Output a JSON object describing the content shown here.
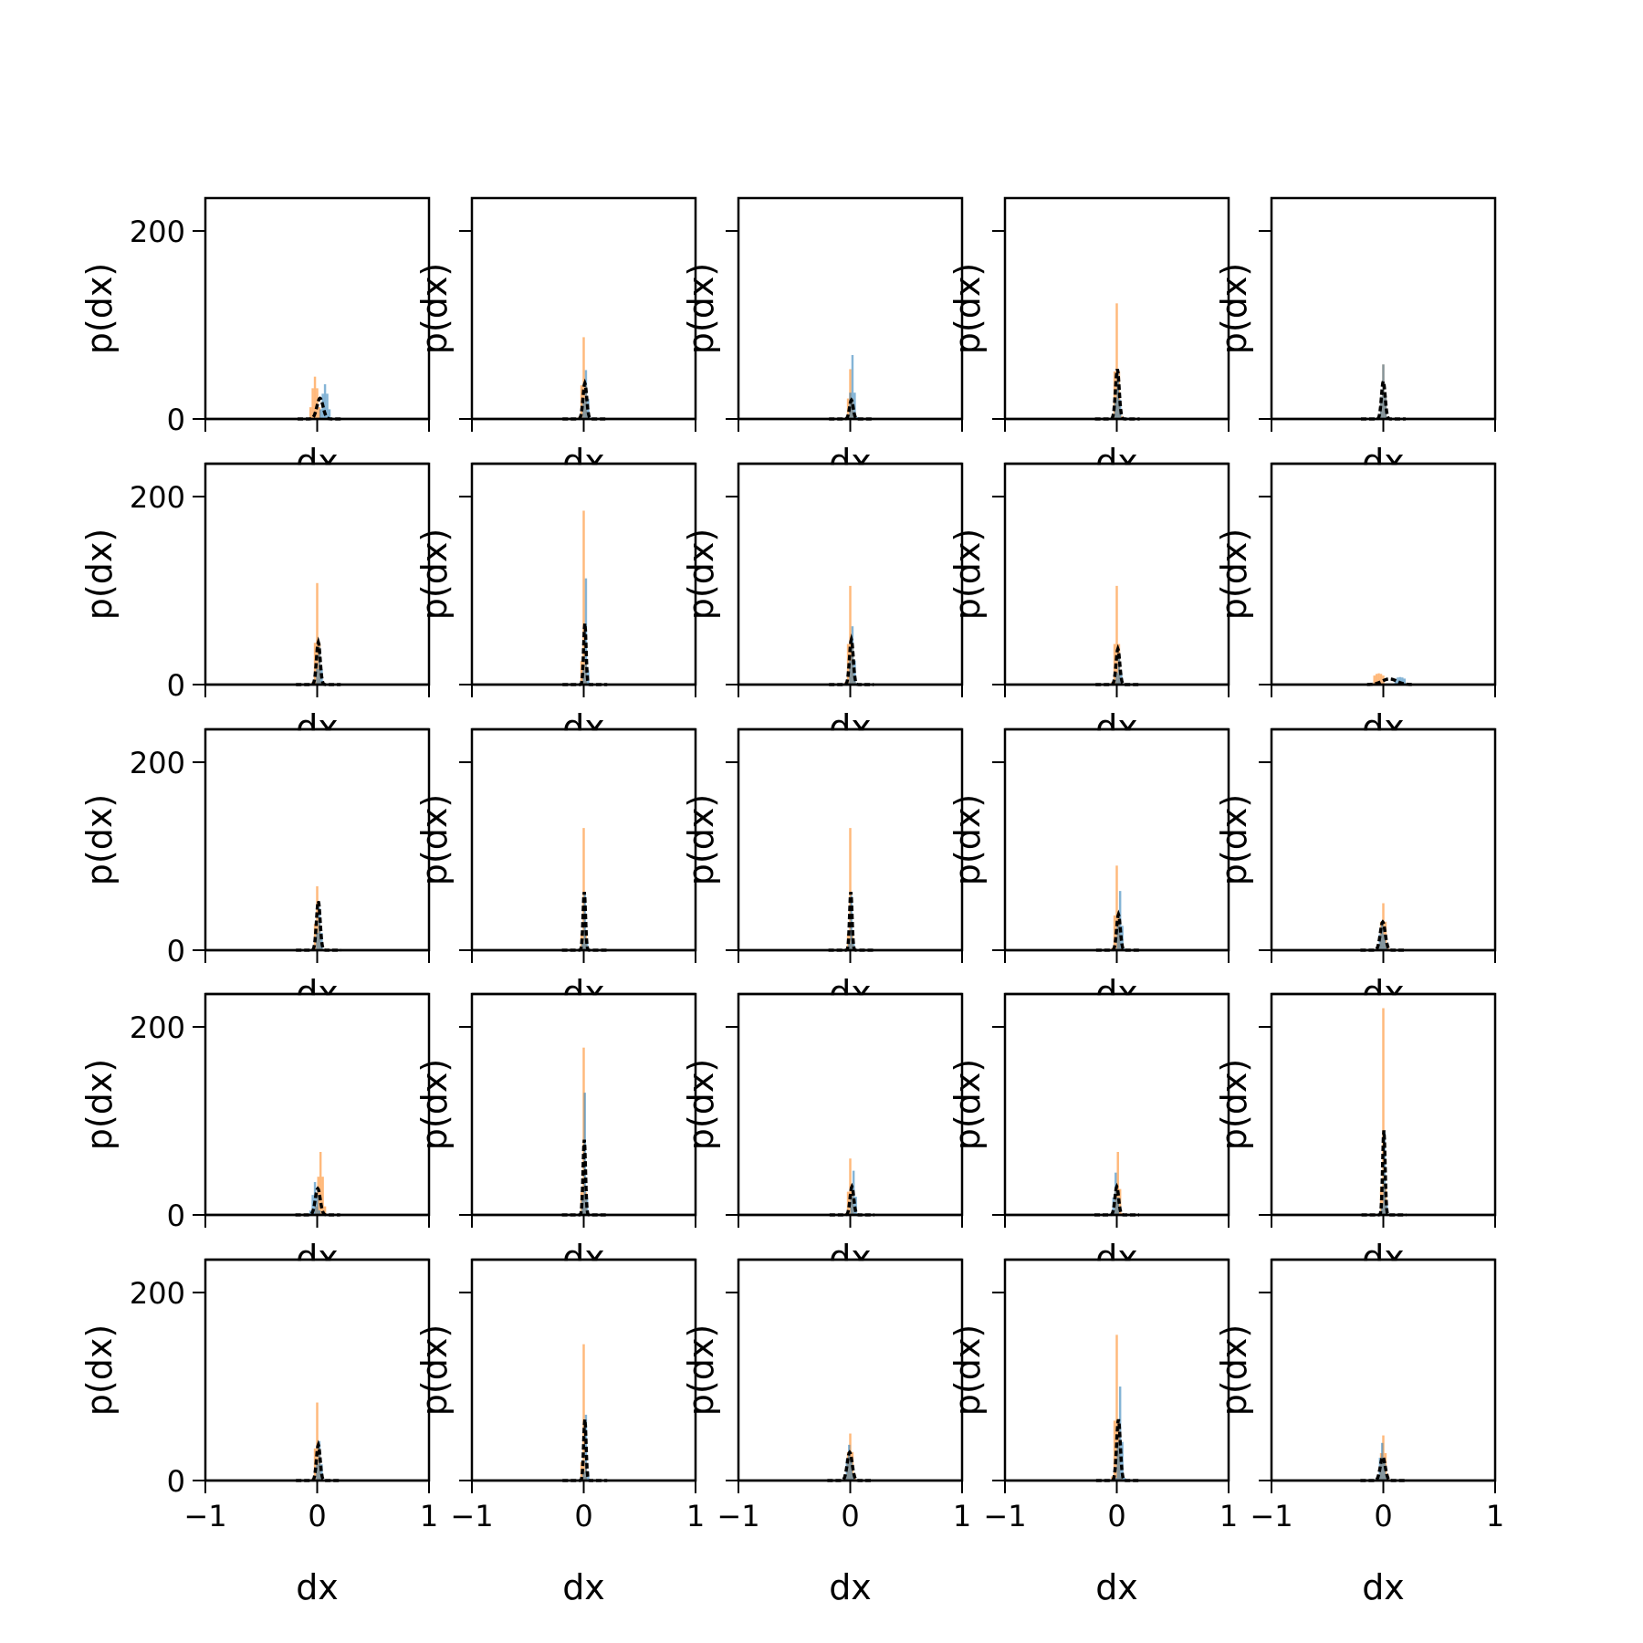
{
  "colors": {
    "series_blue": "#1f77b4",
    "series_orange": "#ff7f0e",
    "overlay": "#000000",
    "axes": "#000000"
  },
  "chart_data": {
    "type": "bar",
    "layout": "5x5 grid of histogram panels, shared x and y axes",
    "xlabel": "dx",
    "ylabel": "p(dx)",
    "xlim": [
      -1,
      1
    ],
    "ylim": [
      0,
      235
    ],
    "xticks": [
      -1,
      0,
      1
    ],
    "xtick_labels": [
      "−1",
      "0",
      "1"
    ],
    "yticks": [
      0,
      200
    ],
    "ytick_labels": [
      "0",
      "200"
    ],
    "grid": false,
    "legend": "none",
    "series": [
      {
        "color": "blue",
        "style": "histogram, translucent"
      },
      {
        "color": "orange",
        "style": "histogram, translucent"
      },
      {
        "color": "black",
        "style": "dashed density curve"
      }
    ],
    "panels": [
      {
        "row": 1,
        "col": 1,
        "orange_peak": 45,
        "orange_x": -0.02,
        "blue_peak": 37,
        "blue_x": 0.07,
        "black_peak": 22,
        "spread": 0.05
      },
      {
        "row": 1,
        "col": 2,
        "orange_peak": 87,
        "orange_x": 0.0,
        "blue_peak": 52,
        "blue_x": 0.02,
        "black_peak": 38,
        "spread": 0.03
      },
      {
        "row": 1,
        "col": 3,
        "orange_peak": 53,
        "orange_x": 0.0,
        "blue_peak": 68,
        "blue_x": 0.02,
        "black_peak": 20,
        "spread": 0.03
      },
      {
        "row": 1,
        "col": 4,
        "orange_peak": 123,
        "orange_x": 0.0,
        "blue_peak": 50,
        "blue_x": 0.01,
        "black_peak": 53,
        "spread": 0.03
      },
      {
        "row": 1,
        "col": 5,
        "orange_peak": 58,
        "orange_x": 0.0,
        "blue_peak": 58,
        "blue_x": 0.0,
        "black_peak": 40,
        "spread": 0.03
      },
      {
        "row": 2,
        "col": 1,
        "orange_peak": 108,
        "orange_x": 0.0,
        "blue_peak": 40,
        "blue_x": 0.02,
        "black_peak": 45,
        "spread": 0.03
      },
      {
        "row": 2,
        "col": 2,
        "orange_peak": 185,
        "orange_x": 0.0,
        "blue_peak": 113,
        "blue_x": 0.02,
        "black_peak": 65,
        "spread": 0.02
      },
      {
        "row": 2,
        "col": 3,
        "orange_peak": 105,
        "orange_x": 0.0,
        "blue_peak": 62,
        "blue_x": 0.02,
        "black_peak": 48,
        "spread": 0.03
      },
      {
        "row": 2,
        "col": 4,
        "orange_peak": 105,
        "orange_x": 0.0,
        "blue_peak": 30,
        "blue_x": 0.02,
        "black_peak": 38,
        "spread": 0.03
      },
      {
        "row": 2,
        "col": 5,
        "orange_peak": 12,
        "orange_x": -0.04,
        "blue_peak": 8,
        "blue_x": 0.15,
        "black_peak": 6,
        "spread": 0.12
      },
      {
        "row": 3,
        "col": 1,
        "orange_peak": 68,
        "orange_x": 0.0,
        "blue_peak": 45,
        "blue_x": 0.02,
        "black_peak": 52,
        "spread": 0.03
      },
      {
        "row": 3,
        "col": 2,
        "orange_peak": 130,
        "orange_x": 0.0,
        "blue_peak": 60,
        "blue_x": 0.01,
        "black_peak": 62,
        "spread": 0.02
      },
      {
        "row": 3,
        "col": 3,
        "orange_peak": 130,
        "orange_x": 0.0,
        "blue_peak": 58,
        "blue_x": 0.01,
        "black_peak": 62,
        "spread": 0.02
      },
      {
        "row": 3,
        "col": 4,
        "orange_peak": 90,
        "orange_x": 0.0,
        "blue_peak": 63,
        "blue_x": 0.03,
        "black_peak": 38,
        "spread": 0.03
      },
      {
        "row": 3,
        "col": 5,
        "orange_peak": 50,
        "orange_x": 0.0,
        "blue_peak": 28,
        "blue_x": -0.01,
        "black_peak": 30,
        "spread": 0.04
      },
      {
        "row": 4,
        "col": 1,
        "orange_peak": 67,
        "orange_x": 0.03,
        "blue_peak": 35,
        "blue_x": -0.02,
        "black_peak": 28,
        "spread": 0.04
      },
      {
        "row": 4,
        "col": 2,
        "orange_peak": 178,
        "orange_x": 0.0,
        "blue_peak": 130,
        "blue_x": 0.01,
        "black_peak": 80,
        "spread": 0.02
      },
      {
        "row": 4,
        "col": 3,
        "orange_peak": 60,
        "orange_x": 0.0,
        "blue_peak": 47,
        "blue_x": 0.03,
        "black_peak": 30,
        "spread": 0.03
      },
      {
        "row": 4,
        "col": 4,
        "orange_peak": 67,
        "orange_x": 0.01,
        "blue_peak": 45,
        "blue_x": -0.01,
        "black_peak": 30,
        "spread": 0.03
      },
      {
        "row": 4,
        "col": 5,
        "orange_peak": 222,
        "orange_x": 0.0,
        "blue_peak": 88,
        "blue_x": 0.01,
        "black_peak": 90,
        "spread": 0.02
      },
      {
        "row": 5,
        "col": 1,
        "orange_peak": 83,
        "orange_x": 0.0,
        "blue_peak": 42,
        "blue_x": 0.02,
        "black_peak": 38,
        "spread": 0.03
      },
      {
        "row": 5,
        "col": 2,
        "orange_peak": 145,
        "orange_x": 0.0,
        "blue_peak": 70,
        "blue_x": 0.02,
        "black_peak": 65,
        "spread": 0.02
      },
      {
        "row": 5,
        "col": 3,
        "orange_peak": 50,
        "orange_x": 0.0,
        "blue_peak": 38,
        "blue_x": -0.01,
        "black_peak": 30,
        "spread": 0.04
      },
      {
        "row": 5,
        "col": 4,
        "orange_peak": 155,
        "orange_x": 0.0,
        "blue_peak": 100,
        "blue_x": 0.03,
        "black_peak": 65,
        "spread": 0.03
      },
      {
        "row": 5,
        "col": 5,
        "orange_peak": 48,
        "orange_x": 0.0,
        "blue_peak": 40,
        "blue_x": -0.01,
        "black_peak": 25,
        "spread": 0.04
      }
    ]
  }
}
